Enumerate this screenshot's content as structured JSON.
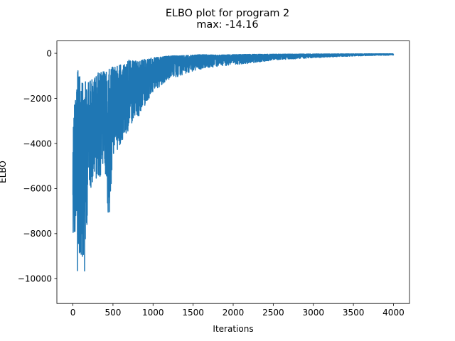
{
  "chart_data": {
    "type": "line",
    "title": "ELBO plot for program 2",
    "subtitle": "max: -14.16",
    "xlabel": "Iterations",
    "ylabel": "ELBO",
    "xlim": [
      -200,
      4200
    ],
    "ylim": [
      -11100,
      550
    ],
    "xticks": [
      0,
      500,
      1000,
      1500,
      2000,
      2500,
      3000,
      3500,
      4000
    ],
    "yticks": [
      0,
      -2000,
      -4000,
      -6000,
      -8000,
      -10000
    ],
    "grid": false,
    "legend": "none",
    "color": "#1f77b4",
    "envelope": {
      "iterations": [
        0,
        10,
        20,
        30,
        40,
        50,
        60,
        75,
        90,
        100,
        120,
        140,
        160,
        180,
        200,
        250,
        300,
        350,
        400,
        450,
        500,
        600,
        700,
        800,
        900,
        1000,
        1200,
        1400,
        1600,
        1800,
        2000,
        2200,
        2500,
        3000,
        3500,
        4000
      ],
      "upper": [
        -3400,
        -2300,
        -1800,
        -1500,
        -1300,
        -1200,
        -700,
        -1000,
        -1000,
        -1300,
        -1300,
        -1500,
        -1200,
        -1300,
        -1200,
        -1100,
        -900,
        -800,
        -800,
        -700,
        -600,
        -500,
        -300,
        -350,
        -250,
        -200,
        -120,
        -100,
        -60,
        -80,
        -60,
        -50,
        -40,
        -30,
        -25,
        -20
      ],
      "lower": [
        -8300,
        -7200,
        -9500,
        -8000,
        -7000,
        -9600,
        -10600,
        -10000,
        -8300,
        -9700,
        -9000,
        -10400,
        -9000,
        -7300,
        -6000,
        -6000,
        -5500,
        -5500,
        -5200,
        -7900,
        -4600,
        -4000,
        -3500,
        -3000,
        -2300,
        -1800,
        -1200,
        -900,
        -700,
        -600,
        -500,
        -450,
        -300,
        -200,
        -120,
        -80
      ]
    }
  }
}
